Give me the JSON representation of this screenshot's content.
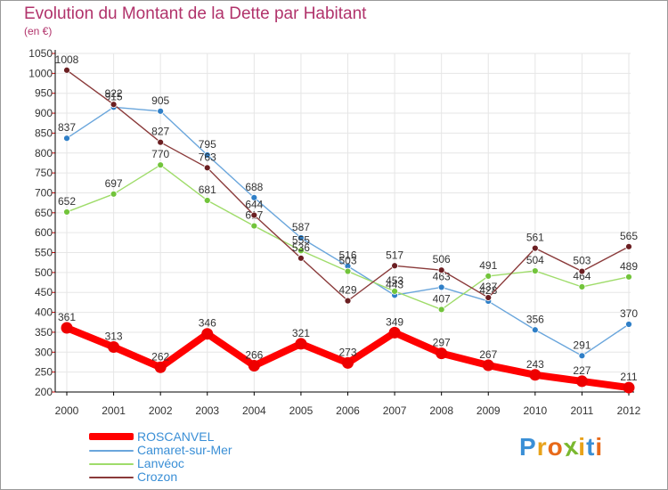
{
  "title": "Evolution du Montant de la Dette par Habitant",
  "subtitle": "(en €)",
  "brand": {
    "text": "Proxiti",
    "letter_colors": [
      "#3a8fd6",
      "#e8a21a",
      "#e86a1a",
      "#7ab82f",
      "#e8a21a",
      "#3a8fd6",
      "#e86a1a"
    ]
  },
  "colors": {
    "title": "#b1336b",
    "axis": "#000000",
    "grid": "#e6e6e6",
    "tick_text": "#333333",
    "value_text": "#333333",
    "legend_text": "#3a8fd6"
  },
  "chart_data": {
    "type": "line",
    "title": "Evolution du Montant de la Dette par Habitant",
    "subtitle": "(en €)",
    "x": [
      2000,
      2001,
      2002,
      2003,
      2004,
      2005,
      2006,
      2007,
      2008,
      2009,
      2010,
      2011,
      2012
    ],
    "ylim": [
      200,
      1050
    ],
    "yticks": [
      200,
      250,
      300,
      350,
      400,
      450,
      500,
      550,
      600,
      650,
      700,
      750,
      800,
      850,
      900,
      950,
      1000,
      1050
    ],
    "grid": true,
    "legend_position": "bottom-left",
    "series": [
      {
        "name": "ROSCANVEL",
        "color": "#ff0000",
        "marker_color": "#ee0000",
        "thick": true,
        "values": [
          361,
          313,
          262,
          346,
          266,
          321,
          273,
          349,
          297,
          267,
          243,
          227,
          211
        ],
        "labels": [
          "361",
          "313",
          "262",
          "346",
          "266",
          "321",
          "273",
          "349",
          "297",
          "267",
          "243",
          "227",
          "211"
        ]
      },
      {
        "name": "Camaret-sur-Mer",
        "color": "#6aa6dc",
        "marker_color": "#2f7fc7",
        "thick": false,
        "values": [
          837,
          915,
          905,
          795,
          688,
          587,
          516,
          443,
          463,
          428,
          356,
          291,
          370
        ],
        "labels": [
          "837",
          "915",
          "905",
          "795",
          "688",
          "587",
          "516",
          "443",
          "463",
          "428",
          "356",
          "291",
          "370"
        ]
      },
      {
        "name": "Lanvéoc",
        "color": "#9fdc6a",
        "marker_color": "#72c43b",
        "thick": false,
        "values": [
          652,
          697,
          770,
          681,
          617,
          555,
          503,
          453,
          407,
          491,
          504,
          464,
          489
        ],
        "labels": [
          "652",
          "697",
          "770",
          "681",
          "617",
          "555",
          "503",
          "453",
          "407",
          "491",
          "504",
          "464",
          "489"
        ]
      },
      {
        "name": "Crozon",
        "color": "#8a3a3a",
        "marker_color": "#6b1f22",
        "thick": false,
        "values": [
          1008,
          922,
          827,
          763,
          644,
          536,
          429,
          517,
          506,
          437,
          561,
          503,
          565
        ],
        "labels": [
          "1008",
          "922",
          "827",
          "763",
          "644",
          "536",
          "429",
          "517",
          "506",
          "437",
          "561",
          "503",
          "565"
        ]
      }
    ]
  }
}
